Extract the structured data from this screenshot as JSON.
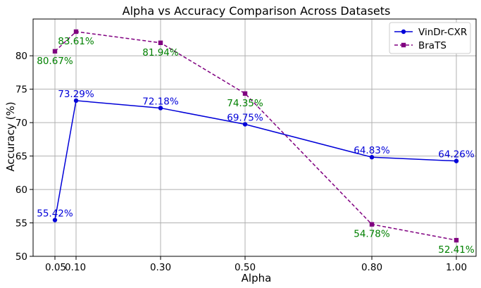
{
  "chart_data": {
    "type": "line",
    "title": "Alpha vs Accuracy Comparison Across Datasets",
    "xlabel": "Alpha",
    "ylabel": "Accuracy (%)",
    "x": [
      0.05,
      0.1,
      0.3,
      0.5,
      0.8,
      1.0
    ],
    "x_tick_labels": [
      "0.05",
      "0.10",
      "0.30",
      "0.50",
      "0.80",
      "1.00"
    ],
    "ylim": [
      50,
      85.5
    ],
    "y_ticks": [
      50,
      55,
      60,
      65,
      70,
      75,
      80
    ],
    "grid": true,
    "legend_position": "top-right",
    "series": [
      {
        "name": "VinDr-CXR",
        "color": "#0000d8",
        "line_style": "solid",
        "marker": "circle",
        "values": [
          55.42,
          73.29,
          72.18,
          69.75,
          64.83,
          64.26
        ],
        "labels": [
          "55.42%",
          "73.29%",
          "72.18%",
          "69.75%",
          "64.83%",
          "64.26%"
        ]
      },
      {
        "name": "BraTS",
        "color": "#800080",
        "label_color": "#008000",
        "line_style": "dashed",
        "marker": "square",
        "values": [
          80.67,
          83.61,
          81.94,
          74.35,
          54.78,
          52.41
        ],
        "labels": [
          "80.67%",
          "83.61%",
          "81.94%",
          "74.35%",
          "54.78%",
          "52.41%"
        ]
      }
    ]
  }
}
